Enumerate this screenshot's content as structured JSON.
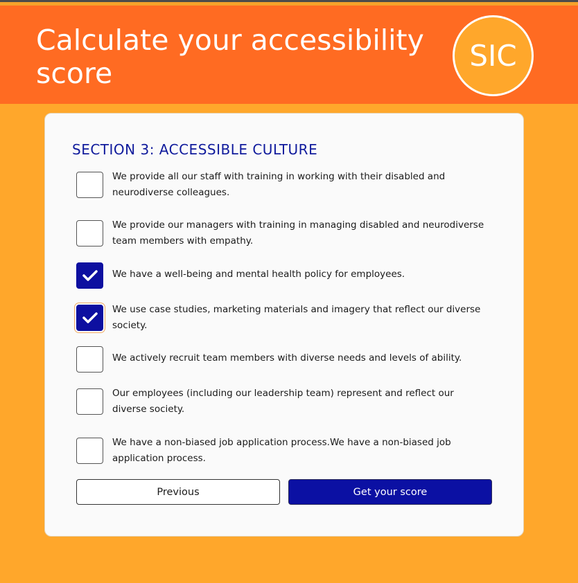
{
  "header": {
    "title": "Calculate your accessibility score",
    "logo_text": "SIC"
  },
  "section": {
    "title": "SECTION 3: ACCESSIBLE CULTURE"
  },
  "items": [
    {
      "label": "We provide all our staff with training in working with their disabled and neurodiverse colleagues.",
      "checked": false
    },
    {
      "label": "We provide our managers with training in managing disabled and neurodiverse team members with empathy.",
      "checked": false
    },
    {
      "label": "We have a well-being and mental health policy for employees.",
      "checked": true
    },
    {
      "label": "We use case studies, marketing materials and imagery that reflect our diverse society.",
      "checked": true,
      "focused": true
    },
    {
      "label": "We actively recruit team members with diverse needs and levels of ability.",
      "checked": false
    },
    {
      "label": "Our employees (including our leadership team) represent and reflect our diverse society.",
      "checked": false
    },
    {
      "label": "We have a non-biased job application process.We have a non-biased job application process.",
      "checked": false
    }
  ],
  "buttons": {
    "previous_label": "Previous",
    "score_label": "Get your score"
  },
  "colors": {
    "header_bg": "#ff6b22",
    "page_bg": "#ffa72b",
    "accent_blue": "#0d0fa0"
  },
  "icons": {
    "check": "check-icon"
  }
}
